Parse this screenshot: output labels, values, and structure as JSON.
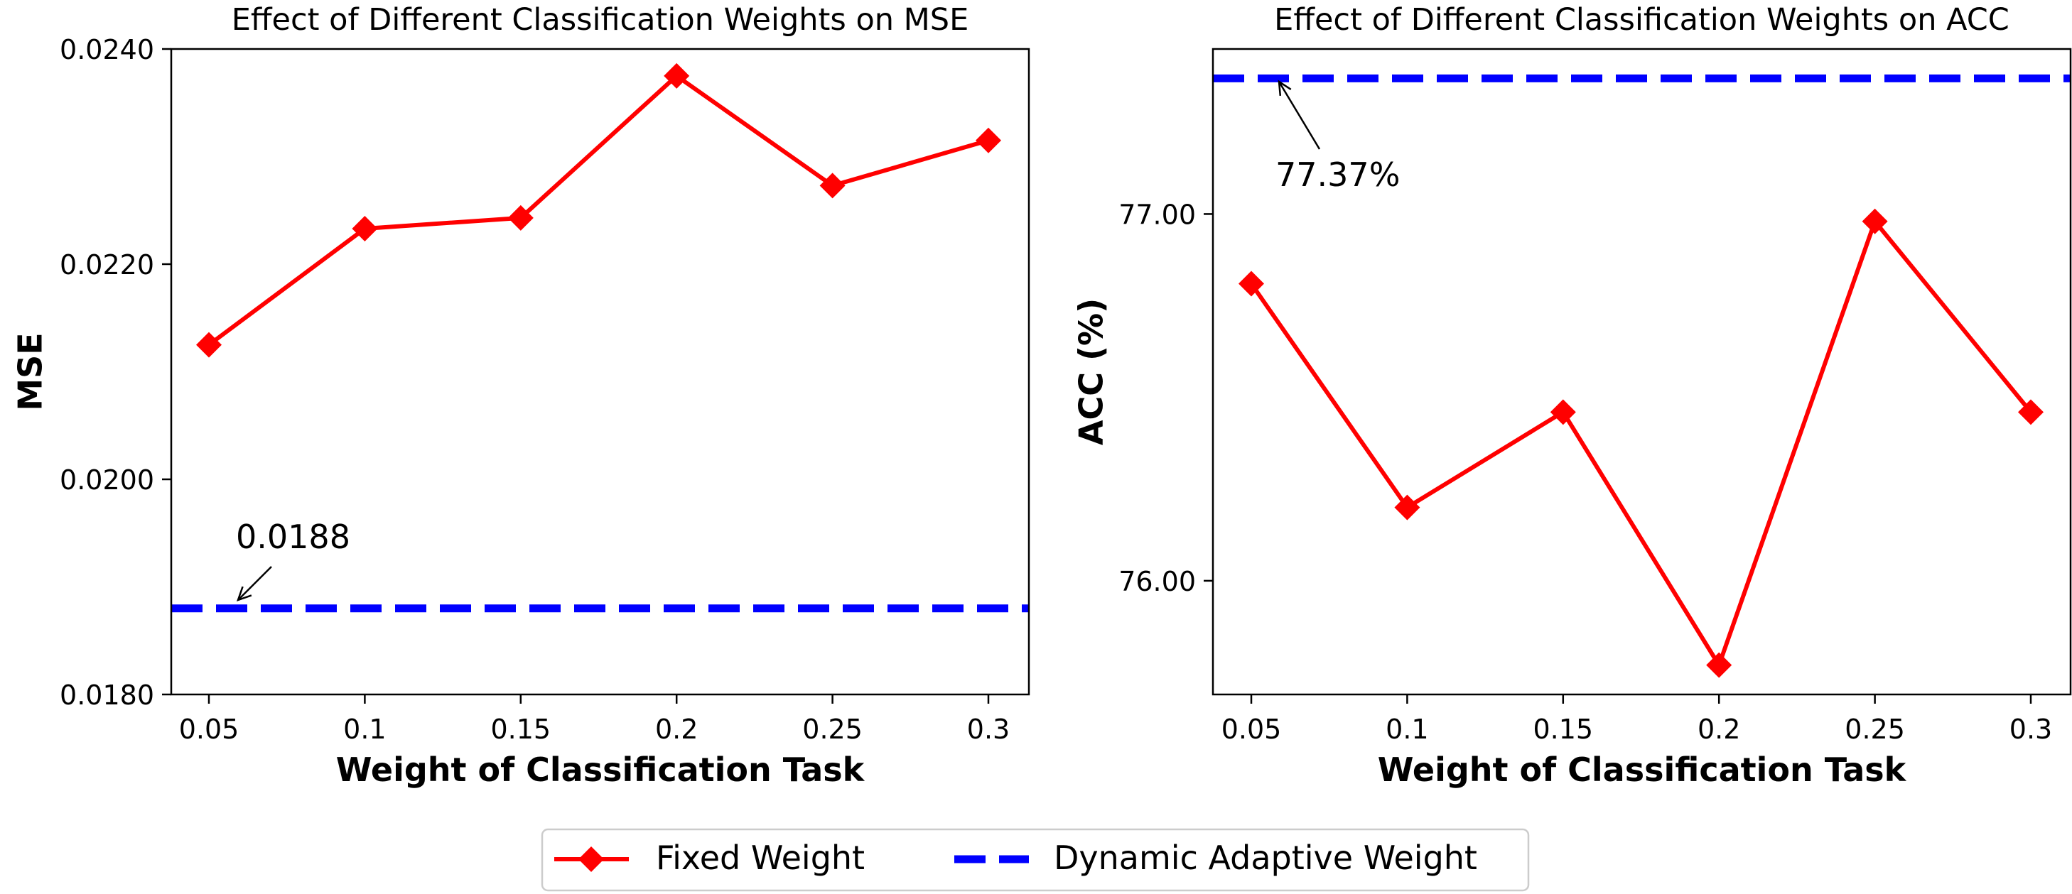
{
  "chart_data": [
    {
      "type": "line",
      "title": "Effect of Different Classification Weights on MSE",
      "xlabel": "Weight of Classification Task",
      "ylabel": "MSE",
      "x": [
        "0.05",
        "0.1",
        "0.15",
        "0.2",
        "0.25",
        "0.3"
      ],
      "series": [
        {
          "name": "Fixed Weight",
          "values": [
            0.02125,
            0.02233,
            0.02243,
            0.02375,
            0.02273,
            0.02315
          ],
          "color": "#ff0000",
          "marker": "diamond"
        }
      ],
      "hline": {
        "name": "Dynamic Adaptive Weight",
        "value": 0.0188,
        "color": "#0000ff",
        "style": "dashed"
      },
      "annotation": {
        "text": "0.0188"
      },
      "ylim": [
        0.018,
        0.024
      ],
      "yticks": [
        "0.0180",
        "0.0200",
        "0.0220",
        "0.0240"
      ],
      "ytick_values": [
        0.018,
        0.02,
        0.022,
        0.024
      ]
    },
    {
      "type": "line",
      "title": "Effect of Different Classification Weights on ACC",
      "xlabel": "Weight of Classification Task",
      "ylabel": "ACC (%)",
      "x": [
        "0.05",
        "0.1",
        "0.15",
        "0.2",
        "0.25",
        "0.3"
      ],
      "series": [
        {
          "name": "Fixed Weight",
          "values": [
            76.81,
            76.2,
            76.46,
            75.77,
            76.98,
            76.46
          ],
          "color": "#ff0000",
          "marker": "diamond"
        }
      ],
      "hline": {
        "name": "Dynamic Adaptive Weight",
        "value": 77.37,
        "color": "#0000ff",
        "style": "dashed"
      },
      "annotation": {
        "text": "77.37%"
      },
      "ylim": [
        75.69,
        77.45
      ],
      "yticks": [
        "76.00",
        "77.00"
      ],
      "ytick_values": [
        76.0,
        77.0
      ]
    }
  ],
  "legend": {
    "items": [
      {
        "label": "Fixed Weight",
        "color": "#ff0000",
        "style": "line-diamond"
      },
      {
        "label": "Dynamic Adaptive Weight",
        "color": "#0000ff",
        "style": "dashed"
      }
    ],
    "placement": "bottom-center"
  }
}
